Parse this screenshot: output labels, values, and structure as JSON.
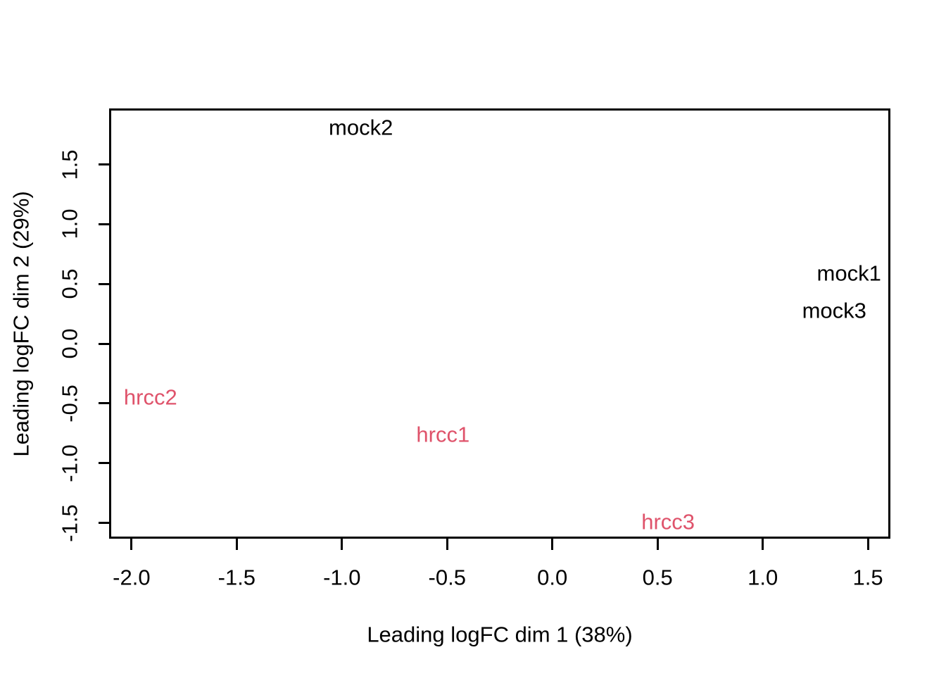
{
  "figure": {
    "background_color": "#ffffff",
    "frame_color": "#000000"
  },
  "chart_data": {
    "type": "scatter",
    "subtype": "mds-plot-text-labels",
    "title": "",
    "xlabel": "Leading logFC dim 1 (38%)",
    "ylabel": "Leading logFC dim 2 (29%)",
    "xlim": [
      -2.1,
      1.6
    ],
    "ylim": [
      -1.62,
      1.96
    ],
    "x_ticks": [
      -2.0,
      -1.5,
      -1.0,
      -0.5,
      0.0,
      0.5,
      1.0,
      1.5
    ],
    "x_tick_labels": [
      "-2.0",
      "-1.5",
      "-1.0",
      "-0.5",
      "0.0",
      "0.5",
      "1.0",
      "1.5"
    ],
    "y_ticks": [
      -1.5,
      -1.0,
      -0.5,
      0.0,
      0.5,
      1.0,
      1.5
    ],
    "y_tick_labels": [
      "-1.5",
      "-1.0",
      "-0.5",
      "0.0",
      "0.5",
      "1.0",
      "1.5"
    ],
    "grid": false,
    "legend_position": "none",
    "series": [
      {
        "name": "mock",
        "color": "#000000",
        "points": [
          {
            "label": "mock1",
            "x": 1.41,
            "y": 0.59
          },
          {
            "label": "mock2",
            "x": -0.91,
            "y": 1.81
          },
          {
            "label": "mock3",
            "x": 1.34,
            "y": 0.28
          }
        ]
      },
      {
        "name": "hrcc",
        "color": "#DF536B",
        "points": [
          {
            "label": "hrcc1",
            "x": -0.52,
            "y": -0.76
          },
          {
            "label": "hrcc2",
            "x": -1.91,
            "y": -0.45
          },
          {
            "label": "hrcc3",
            "x": 0.55,
            "y": -1.49
          }
        ]
      }
    ]
  }
}
